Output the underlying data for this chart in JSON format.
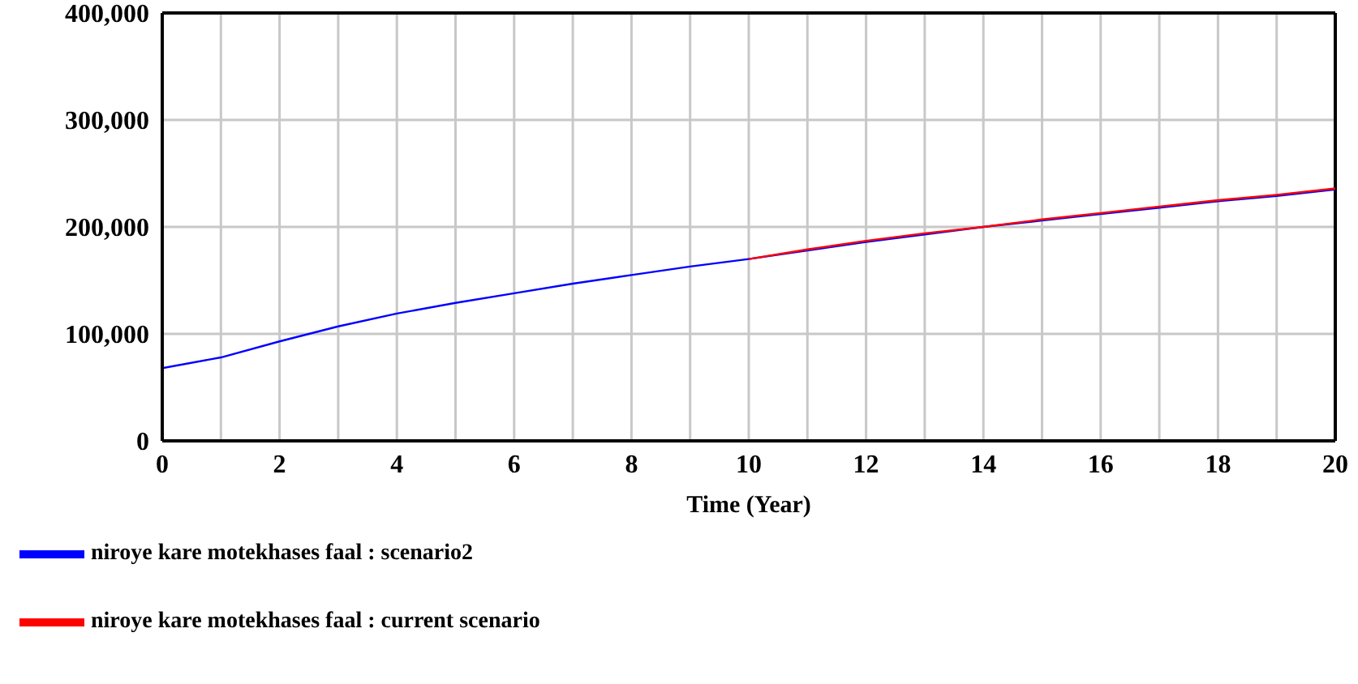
{
  "chart_data": {
    "type": "line",
    "xlabel": "Time (Year)",
    "x": [
      0,
      1,
      2,
      3,
      4,
      5,
      6,
      7,
      8,
      9,
      10,
      11,
      12,
      13,
      14,
      15,
      16,
      17,
      18,
      19,
      20
    ],
    "series": [
      {
        "name": "niroye kare motekhases faal : scenario2",
        "color": "#0000ff",
        "values": [
          68000,
          78000,
          93000,
          107000,
          119000,
          129000,
          138000,
          147000,
          155000,
          163000,
          170000,
          178000,
          186000,
          193000,
          200000,
          206000,
          212000,
          218000,
          224000,
          229000,
          235000
        ]
      },
      {
        "name": "niroye kare motekhases faal : current scenario",
        "color": "#ff0000",
        "values": [
          null,
          null,
          null,
          null,
          null,
          null,
          null,
          null,
          null,
          null,
          170000,
          179000,
          187000,
          194000,
          200000,
          207000,
          213000,
          219000,
          225000,
          230000,
          236000
        ]
      }
    ],
    "xlim": [
      0,
      20
    ],
    "xticks": [
      0,
      2,
      4,
      6,
      8,
      10,
      12,
      14,
      16,
      18,
      20
    ],
    "ylim": [
      0,
      400000
    ],
    "yticks": [
      0,
      {
        "value": 100000,
        "label": "100,000"
      },
      {
        "value": 200000,
        "label": "200,000"
      },
      {
        "value": 300000,
        "label": "300,000"
      },
      {
        "value": 400000,
        "label": "400,000"
      }
    ],
    "grid": true,
    "legend": "bottom",
    "marker": "none",
    "line_style": "solid"
  }
}
